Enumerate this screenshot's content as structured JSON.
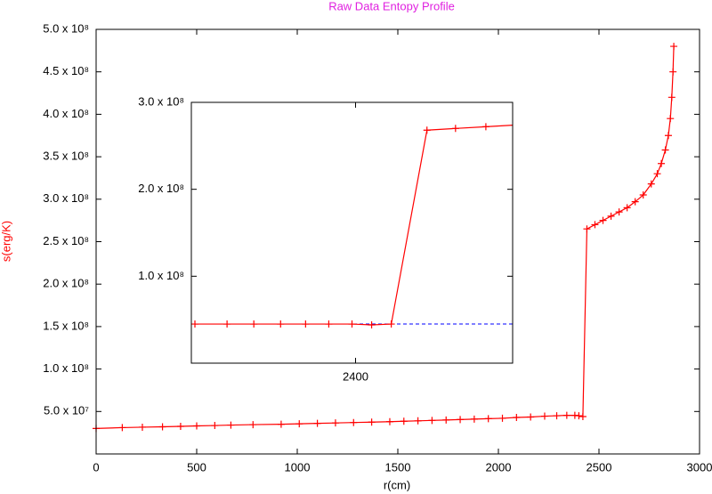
{
  "chart_data": [
    {
      "type": "line",
      "title": "Raw Data Entopy Profile",
      "title_color": "#e020e0",
      "x_label": "r(cm)",
      "y_label": "s(erg/K)",
      "y_label_color": "#ff0000",
      "xlim": [
        0,
        3000
      ],
      "xticks": [
        0,
        500,
        1000,
        1500,
        2000,
        2500,
        3000
      ],
      "ylim": [
        0,
        500000000
      ],
      "yticks": [
        {
          "value": 50000000,
          "label": "5.0 x 10⁷"
        },
        {
          "value": 100000000,
          "label": "1.0 x 10⁸"
        },
        {
          "value": 150000000,
          "label": "1.5 x 10⁸"
        },
        {
          "value": 200000000,
          "label": "2.0 x 10⁸"
        },
        {
          "value": 250000000,
          "label": "2.5 x 10⁸"
        },
        {
          "value": 300000000,
          "label": "3.0 x 10⁸"
        },
        {
          "value": 350000000,
          "label": "3.5 x 10⁸"
        },
        {
          "value": 400000000,
          "label": "4.0 x 10⁸"
        },
        {
          "value": 450000000,
          "label": "4.5 x 10⁸"
        },
        {
          "value": 500000000,
          "label": "5.0 x 10⁸"
        }
      ],
      "series": [
        {
          "color": "#ff0000",
          "x": [
            0,
            130,
            230,
            330,
            420,
            500,
            590,
            670,
            780,
            920,
            1010,
            1100,
            1190,
            1280,
            1370,
            1460,
            1530,
            1600,
            1670,
            1740,
            1810,
            1880,
            1950,
            2020,
            2090,
            2160,
            2230,
            2290,
            2340,
            2380,
            2400,
            2420,
            2440,
            2480,
            2520,
            2560,
            2600,
            2640,
            2680,
            2720,
            2760,
            2790,
            2810,
            2830,
            2845,
            2855,
            2862,
            2868,
            2872
          ],
          "values": [
            30000000,
            31000000,
            31500000,
            32000000,
            32500000,
            33000000,
            33500000,
            34000000,
            34500000,
            35000000,
            35500000,
            36000000,
            36500000,
            37000000,
            37500000,
            38000000,
            38500000,
            39000000,
            39500000,
            40000000,
            40500000,
            41000000,
            41500000,
            42000000,
            43000000,
            43500000,
            44500000,
            45000000,
            45500000,
            45500000,
            45000000,
            44000000,
            265000000,
            270000000,
            275000000,
            280000000,
            285000000,
            290000000,
            297000000,
            305000000,
            318000000,
            330000000,
            342000000,
            358000000,
            375000000,
            395000000,
            420000000,
            450000000,
            480000000
          ]
        }
      ]
    },
    {
      "type": "line",
      "xlim": [
        2308,
        2488
      ],
      "xticks": [
        2400
      ],
      "ylim": [
        0,
        300000000
      ],
      "yticks": [
        {
          "value": 100000000,
          "label": "1.0 x 10⁸"
        },
        {
          "value": 200000000,
          "label": "2.0 x 10⁸"
        },
        {
          "value": 300000000,
          "label": "3.0 x 10⁸"
        }
      ],
      "reference_line": {
        "value": 45000000,
        "color": "#0000ff"
      },
      "series": [
        {
          "color": "#ff0000",
          "x": [
            2310,
            2328,
            2343,
            2358,
            2372,
            2385,
            2398,
            2409,
            2420,
            2440,
            2456,
            2473,
            2490
          ],
          "values": [
            45000000,
            45000000,
            45000000,
            45000000,
            45000000,
            45000000,
            45000000,
            44000000,
            45000000,
            268000000,
            270000000,
            272000000,
            274000000
          ]
        }
      ]
    }
  ]
}
